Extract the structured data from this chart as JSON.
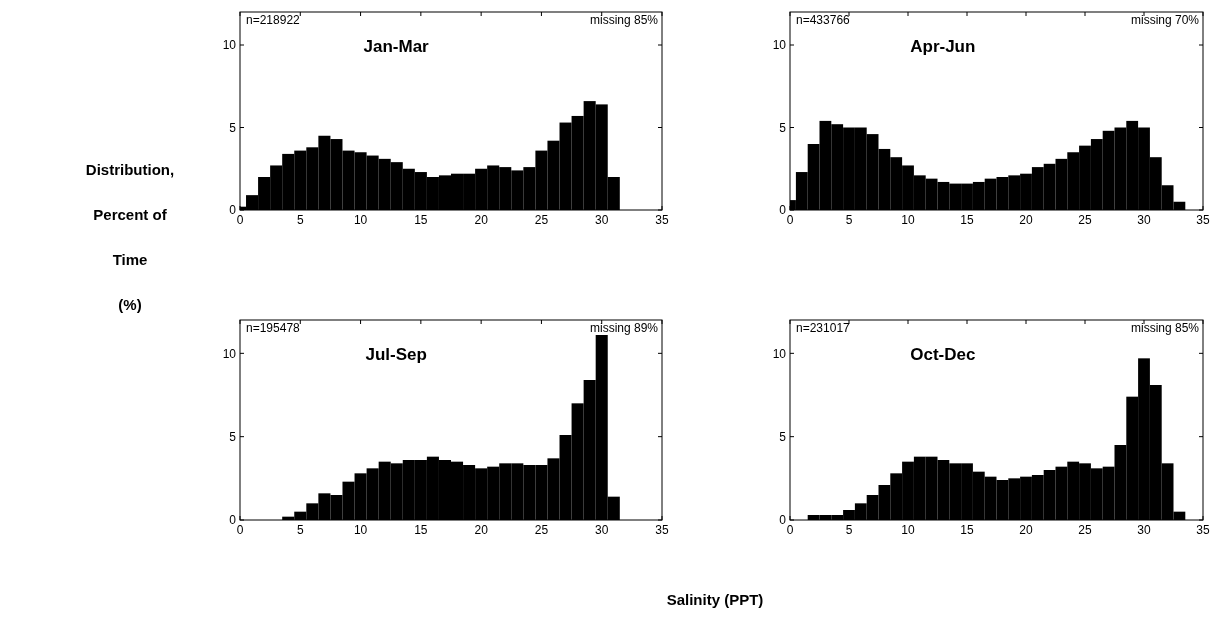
{
  "chart_data": [
    {
      "type": "histogram",
      "title": "Jan-Mar",
      "ylabel": "Distribution,\nPercent of\nTime\n(%)",
      "annotations": [
        "n=218922",
        "missing 85%"
      ],
      "color": "#000000",
      "bins": [
        0,
        0.5,
        1.5,
        2.5,
        3.5,
        4.5,
        5.5,
        6.5,
        7.5,
        8.5,
        9.5,
        10.5,
        11.5,
        12.5,
        13.5,
        14.5,
        15.5,
        16.5,
        17.5,
        18.5,
        19.5,
        20.5,
        21.5,
        22.5,
        23.5,
        24.5,
        25.5,
        26.5,
        27.5,
        28.5,
        29.5,
        30.5,
        31.5
      ],
      "values": [
        0.2,
        0.9,
        2.0,
        2.7,
        3.4,
        3.6,
        3.8,
        4.5,
        4.3,
        3.6,
        3.5,
        3.3,
        3.1,
        2.9,
        2.5,
        2.3,
        2.0,
        2.1,
        2.2,
        2.2,
        2.5,
        2.7,
        2.6,
        2.4,
        2.6,
        3.6,
        4.2,
        5.3,
        5.7,
        6.6,
        6.4,
        2.0
      ],
      "xlim": [
        0,
        35
      ],
      "ylim": [
        0,
        12
      ],
      "xticks": [
        0,
        5,
        10,
        15,
        20,
        25,
        30,
        35
      ],
      "yticks": [
        0,
        5,
        10
      ]
    },
    {
      "type": "histogram",
      "title": "Apr-Jun",
      "annotations": [
        "n=433766",
        "missing 70%"
      ],
      "color": "#000000",
      "bins": [
        0,
        0.5,
        1.5,
        2.5,
        3.5,
        4.5,
        5.5,
        6.5,
        7.5,
        8.5,
        9.5,
        10.5,
        11.5,
        12.5,
        13.5,
        14.5,
        15.5,
        16.5,
        17.5,
        18.5,
        19.5,
        20.5,
        21.5,
        22.5,
        23.5,
        24.5,
        25.5,
        26.5,
        27.5,
        28.5,
        29.5,
        30.5,
        31.5,
        32.5,
        33.5
      ],
      "values": [
        0.6,
        2.3,
        4.0,
        5.4,
        5.2,
        5.0,
        5.0,
        4.6,
        3.7,
        3.2,
        2.7,
        2.1,
        1.9,
        1.7,
        1.6,
        1.6,
        1.7,
        1.9,
        2.0,
        2.1,
        2.2,
        2.6,
        2.8,
        3.1,
        3.5,
        3.9,
        4.3,
        4.8,
        5.0,
        5.4,
        5.0,
        3.2,
        1.5,
        0.5
      ],
      "xlim": [
        0,
        35
      ],
      "ylim": [
        0,
        12
      ],
      "xticks": [
        0,
        5,
        10,
        15,
        20,
        25,
        30,
        35
      ],
      "yticks": [
        0,
        5,
        10
      ]
    },
    {
      "type": "histogram",
      "title": "Jul-Sep",
      "xlabel": "Salinity (PPT)",
      "annotations": [
        "n=195478",
        "missing 89%"
      ],
      "color": "#000000",
      "bins": [
        3.5,
        4.5,
        5.5,
        6.5,
        7.5,
        8.5,
        9.5,
        10.5,
        11.5,
        12.5,
        13.5,
        14.5,
        15.5,
        16.5,
        17.5,
        18.5,
        19.5,
        20.5,
        21.5,
        22.5,
        23.5,
        24.5,
        25.5,
        26.5,
        27.5,
        28.5,
        29.5,
        30.5,
        31.5
      ],
      "values": [
        0.2,
        0.5,
        1.0,
        1.6,
        1.5,
        2.3,
        2.8,
        3.1,
        3.5,
        3.4,
        3.6,
        3.6,
        3.8,
        3.6,
        3.5,
        3.3,
        3.1,
        3.2,
        3.4,
        3.4,
        3.3,
        3.3,
        3.7,
        5.1,
        7.0,
        8.4,
        11.1,
        1.4
      ],
      "xlim": [
        0,
        35
      ],
      "ylim": [
        0,
        12
      ],
      "xticks": [
        0,
        5,
        10,
        15,
        20,
        25,
        30,
        35
      ],
      "yticks": [
        0,
        5,
        10
      ]
    },
    {
      "type": "histogram",
      "title": "Oct-Dec",
      "annotations": [
        "n=231017",
        "missing 85%"
      ],
      "color": "#000000",
      "bins": [
        1.5,
        2.5,
        3.5,
        4.5,
        5.5,
        6.5,
        7.5,
        8.5,
        9.5,
        10.5,
        11.5,
        12.5,
        13.5,
        14.5,
        15.5,
        16.5,
        17.5,
        18.5,
        19.5,
        20.5,
        21.5,
        22.5,
        23.5,
        24.5,
        25.5,
        26.5,
        27.5,
        28.5,
        29.5,
        30.5,
        31.5,
        32.5,
        33.5
      ],
      "values": [
        0.3,
        0.3,
        0.3,
        0.6,
        1.0,
        1.5,
        2.1,
        2.8,
        3.5,
        3.8,
        3.8,
        3.6,
        3.4,
        3.4,
        2.9,
        2.6,
        2.4,
        2.5,
        2.6,
        2.7,
        3.0,
        3.2,
        3.5,
        3.4,
        3.1,
        3.2,
        4.5,
        7.4,
        9.7,
        8.1,
        3.4,
        0.5
      ],
      "xlim": [
        0,
        35
      ],
      "ylim": [
        0,
        12
      ],
      "xticks": [
        0,
        5,
        10,
        15,
        20,
        25,
        30,
        35
      ],
      "yticks": [
        0,
        5,
        10
      ]
    }
  ]
}
